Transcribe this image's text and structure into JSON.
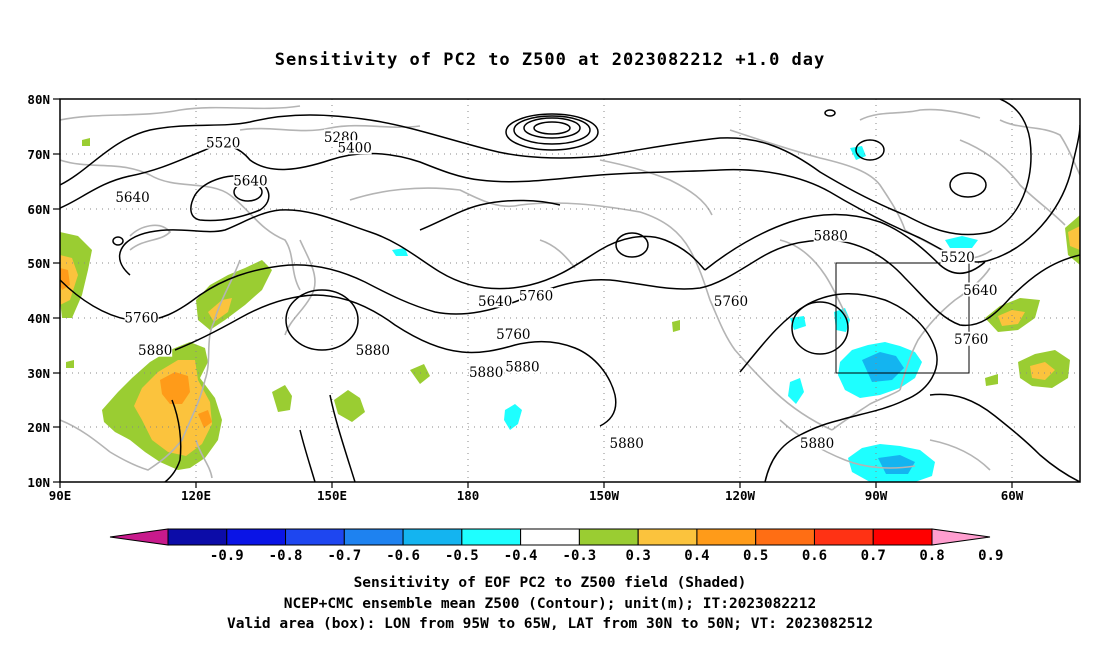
{
  "title": "Sensitivity of PC2 to Z500 at 2023082212 +1.0 day",
  "lat_labels": [
    "80N",
    "70N",
    "60N",
    "50N",
    "40N",
    "30N",
    "20N",
    "10N"
  ],
  "lon_labels": [
    "90E",
    "120E",
    "150E",
    "180",
    "150W",
    "120W",
    "90W",
    "60W"
  ],
  "contour_labels": [
    {
      "text": "5280",
      "lon": 152,
      "lat": 73
    },
    {
      "text": "5400",
      "lon": 155,
      "lat": 71
    },
    {
      "text": "5520",
      "lon": 126,
      "lat": 72
    },
    {
      "text": "5640",
      "lon": 132,
      "lat": 65
    },
    {
      "text": "5640",
      "lon": 106,
      "lat": 62
    },
    {
      "text": "5640",
      "lon": 186,
      "lat": 43
    },
    {
      "text": "5640",
      "lon": 293,
      "lat": 45
    },
    {
      "text": "5520",
      "lon": 288,
      "lat": 51
    },
    {
      "text": "5760",
      "lon": 108,
      "lat": 40
    },
    {
      "text": "5760",
      "lon": 195,
      "lat": 44
    },
    {
      "text": "5760",
      "lon": 190,
      "lat": 37
    },
    {
      "text": "5760",
      "lon": 238,
      "lat": 43
    },
    {
      "text": "5760",
      "lon": 291,
      "lat": 36
    },
    {
      "text": "5880",
      "lon": 260,
      "lat": 55
    },
    {
      "text": "5880",
      "lon": 111,
      "lat": 34
    },
    {
      "text": "5880",
      "lon": 159,
      "lat": 34
    },
    {
      "text": "5880",
      "lon": 184,
      "lat": 30
    },
    {
      "text": "5880",
      "lon": 192,
      "lat": 31
    },
    {
      "text": "5880",
      "lon": 215,
      "lat": 17
    },
    {
      "text": "5880",
      "lon": 257,
      "lat": 17
    }
  ],
  "colorbar": {
    "colors": [
      "#c81a8c",
      "#0c0ca8",
      "#0a14e6",
      "#1e46f0",
      "#1e82f0",
      "#14b4f0",
      "#1effff",
      "#ffffff",
      "#9acd32",
      "#fbc33d",
      "#ff9b19",
      "#ff6e14",
      "#ff3214",
      "#ff0000",
      "#ff9ecf"
    ],
    "labels": [
      "-0.9",
      "-0.8",
      "-0.7",
      "-0.6",
      "-0.5",
      "-0.4",
      "-0.3",
      "0.3",
      "0.4",
      "0.5",
      "0.6",
      "0.7",
      "0.8",
      "0.9"
    ]
  },
  "caption_lines": [
    "Sensitivity of EOF PC2 to Z500 field (Shaded)",
    "NCEP+CMC ensemble mean Z500 (Contour); unit(m); IT:2023082212",
    "Valid area (box): LON from 95W to 65W, LAT from 30N to 50N; VT: 2023082512"
  ]
}
